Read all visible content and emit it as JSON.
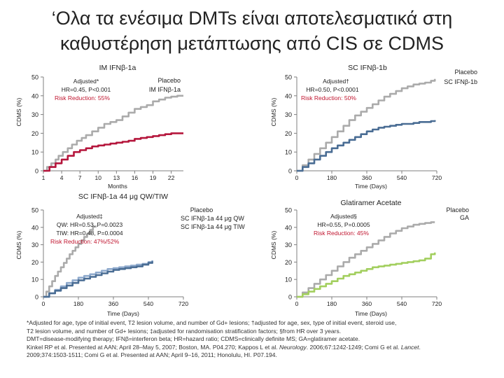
{
  "slide": {
    "title_line1": "‘Ολα τα ενέσιμα DMTs είναι αποτελεσματικά στη",
    "title_line2": "καθυστέρηση μετάπτωσης από CIS σε CDMS"
  },
  "colors": {
    "placebo": "#ababab",
    "im_ifn": "#b5163c",
    "sc_ifn_1b": "#4a6d94",
    "sc_ifn_44": "#8ea9cc",
    "ga": "#a3cf5f",
    "risk_text": "#c0152f",
    "axis": "#7f7f7f"
  },
  "chart_data": [
    {
      "type": "line",
      "title": "IM IFNβ-1a",
      "ylabel": "CDMS (%)",
      "xlabel": "Months",
      "ylim": [
        0,
        50
      ],
      "xlim": [
        1,
        24
      ],
      "x_ticks": [
        "1",
        "4",
        "7",
        "10",
        "13",
        "16",
        "19",
        "22"
      ],
      "y_ticks": [
        "0",
        "10",
        "20",
        "30",
        "40",
        "50"
      ],
      "stats": [
        "Adjusted*",
        "HR=0.45, P<0.001"
      ],
      "risk_reduction": "Risk Reduction: 55%",
      "legend": [
        "Placebo",
        "IM IFNβ-1a"
      ],
      "series": [
        {
          "name": "Placebo",
          "color": "#ababab",
          "x": [
            1,
            1.6,
            2.3,
            3,
            3.5,
            4.2,
            5,
            5.7,
            6.5,
            7.3,
            8,
            9,
            10,
            11,
            12,
            13,
            14,
            15,
            16,
            17,
            18,
            19,
            20,
            21,
            22,
            23,
            24
          ],
          "y": [
            0,
            2,
            4,
            6,
            8,
            10,
            12,
            14,
            16,
            17.5,
            19,
            21,
            23,
            25,
            26,
            27,
            29,
            31,
            33,
            34,
            35,
            37,
            38,
            39,
            39.5,
            40,
            40
          ]
        },
        {
          "name": "IM IFNβ-1a",
          "color": "#b5163c",
          "x": [
            1,
            2,
            3,
            4,
            5,
            6,
            7,
            8,
            9,
            10,
            11,
            12,
            13,
            14,
            15,
            16,
            17,
            18,
            19,
            20,
            21,
            22,
            23,
            24
          ],
          "y": [
            0,
            2,
            4,
            6,
            8,
            10,
            11,
            12,
            13,
            13.5,
            14,
            14.5,
            15,
            15.5,
            16,
            17,
            17.5,
            18,
            18.5,
            19,
            19.5,
            20,
            20,
            20
          ]
        }
      ]
    },
    {
      "type": "line",
      "title": "SC IFNβ-1b",
      "ylabel": "CDMS (%)",
      "xlabel": "Time (Days)",
      "ylim": [
        0,
        50
      ],
      "xlim": [
        0,
        720
      ],
      "x_ticks": [
        "0",
        "180",
        "360",
        "540",
        "720"
      ],
      "y_ticks": [
        "0",
        "10",
        "20",
        "30",
        "40",
        "50"
      ],
      "stats": [
        "Adjusted†",
        "HR=0.50, P<0.0001"
      ],
      "risk_reduction": "Risk Reduction: 50%",
      "legend": [
        "Placebo",
        "SC IFNβ-1b"
      ],
      "series": [
        {
          "name": "Placebo",
          "color": "#ababab",
          "x": [
            0,
            30,
            60,
            90,
            120,
            150,
            180,
            210,
            240,
            270,
            300,
            330,
            360,
            390,
            420,
            450,
            480,
            510,
            540,
            570,
            600,
            630,
            660,
            690,
            710
          ],
          "y": [
            0,
            3,
            6,
            9,
            12,
            15,
            18,
            21,
            24,
            27,
            29.5,
            31.5,
            33.5,
            35.5,
            37.5,
            39.5,
            41,
            42.5,
            44,
            45,
            46,
            46.5,
            47,
            48,
            49
          ]
        },
        {
          "name": "SC IFNβ-1b",
          "color": "#4a6d94",
          "x": [
            0,
            30,
            60,
            90,
            120,
            150,
            180,
            210,
            240,
            270,
            300,
            330,
            360,
            390,
            420,
            450,
            480,
            510,
            540,
            570,
            600,
            630,
            660,
            690,
            710
          ],
          "y": [
            0,
            2,
            4,
            6,
            8,
            10,
            12,
            13.5,
            15,
            16.5,
            18,
            19.5,
            21,
            22,
            23,
            23.5,
            24,
            24.5,
            25,
            25,
            25.5,
            26,
            26,
            26.5,
            27
          ]
        }
      ]
    },
    {
      "type": "line",
      "title": "SC IFNβ-1a 44 μg QW/TIW",
      "ylabel": "CDMS (%)",
      "xlabel": "Time (Days)",
      "ylim": [
        0,
        50
      ],
      "xlim": [
        0,
        720
      ],
      "x_ticks": [
        "0",
        "180",
        "360",
        "540",
        "720"
      ],
      "y_ticks": [
        "0",
        "10",
        "20",
        "30",
        "40",
        "50"
      ],
      "stats": [
        "Adjusted‡",
        "QW: HR=0.53, P=0.0023",
        "TIW: HR=0.48, P=0.0004"
      ],
      "risk_reduction": "Risk Reduction: 47%/52%",
      "legend": [
        "Placebo",
        "SC IFNβ-1a 44 μg QW",
        "SC IFNβ-1a 44 μg TIW"
      ],
      "series": [
        {
          "name": "Placebo",
          "color": "#ababab",
          "x": [
            0,
            15,
            30,
            45,
            60,
            75,
            90,
            105,
            120,
            135,
            150,
            165,
            180,
            195,
            210,
            225,
            240,
            255,
            270
          ],
          "y": [
            0,
            3,
            6,
            9,
            12,
            14.5,
            17,
            19.5,
            22,
            24.5,
            26.5,
            28.5,
            30.5,
            32.5,
            34.5,
            36.5,
            38.5,
            40.5,
            41
          ]
        },
        {
          "name": "SC IFNβ-1a 44 μg QW",
          "color": "#8ea9cc",
          "x": [
            0,
            30,
            60,
            90,
            120,
            150,
            180,
            210,
            240,
            270,
            300,
            330,
            360,
            390,
            420,
            450,
            480,
            510,
            540,
            560
          ],
          "y": [
            0,
            2,
            4,
            6,
            8,
            9.5,
            11,
            12,
            13,
            14,
            15,
            16,
            16.5,
            17,
            17.5,
            18,
            18.5,
            19,
            20,
            21
          ]
        },
        {
          "name": "SC IFNβ-1a 44 μg TIW",
          "color": "#4a6d94",
          "x": [
            0,
            30,
            60,
            90,
            120,
            150,
            180,
            210,
            240,
            270,
            300,
            330,
            360,
            390,
            420,
            450,
            480,
            510,
            540,
            560
          ],
          "y": [
            0,
            2,
            3.5,
            5,
            6.5,
            8,
            9.5,
            10.5,
            11.5,
            12.5,
            13.5,
            14.5,
            15.5,
            16,
            16.5,
            17,
            17.5,
            18.5,
            19.5,
            20.5
          ]
        }
      ]
    },
    {
      "type": "line",
      "title": "Glatiramer Acetate",
      "ylabel": "CDMS (%)",
      "xlabel": "Time (Days)",
      "ylim": [
        0,
        50
      ],
      "xlim": [
        0,
        720
      ],
      "x_ticks": [
        "0",
        "180",
        "360",
        "540",
        "720"
      ],
      "y_ticks": [
        "0",
        "10",
        "20",
        "30",
        "40",
        "50"
      ],
      "stats": [
        "Adjusted§",
        "HR=0.55, P=0.0005"
      ],
      "risk_reduction": "Risk Reduction: 45%",
      "legend": [
        "Placebo",
        "GA"
      ],
      "series": [
        {
          "name": "Placebo",
          "color": "#ababab",
          "x": [
            0,
            30,
            60,
            90,
            120,
            150,
            180,
            210,
            240,
            270,
            300,
            330,
            360,
            390,
            420,
            450,
            480,
            510,
            540,
            570,
            600,
            630,
            660,
            690,
            710
          ],
          "y": [
            0,
            2.5,
            5,
            7.5,
            10,
            12.5,
            15,
            17.5,
            20,
            22.5,
            24.5,
            26.5,
            28.5,
            30.5,
            32.5,
            34.5,
            36.5,
            38,
            39.5,
            40.5,
            41.5,
            42,
            42.5,
            43,
            43
          ]
        },
        {
          "name": "GA",
          "color": "#a3cf5f",
          "x": [
            0,
            30,
            60,
            90,
            120,
            150,
            180,
            210,
            240,
            270,
            300,
            330,
            360,
            390,
            420,
            450,
            480,
            510,
            540,
            570,
            600,
            630,
            660,
            690,
            710
          ],
          "y": [
            0,
            1.5,
            3,
            4.5,
            6,
            7.5,
            9,
            10.5,
            12,
            13,
            14,
            15,
            16,
            17,
            17.5,
            18,
            18.5,
            19,
            19.5,
            20,
            20.5,
            21,
            22,
            24.5,
            25.5
          ]
        }
      ]
    }
  ],
  "footnotes": {
    "line1": "*Adjusted for age, type of initial event, T2 lesion volume, and number of Gd+ lesions; †adjusted for age, sex, type of initial event, steroid use,",
    "line2": "T2 lesion volume, and number of Gd+ lesions; ‡adjusted for randomisation stratification factors; §from HR over 3 years.",
    "line3": "DMT=disease-modifying therapy; IFNβ=interferon beta; HR=hazard ratio; CDMS=clinically definite MS; GA=glatiramer acetate.",
    "line4_pre": "Kinkel RP et al. Presented at AAN; April 28–May 5, 2007; Boston, MA. P04.270; Kappos L et al. ",
    "line4_journal1": "Neurology",
    "line4_mid": ". 2006;67:1242-1249; Comi G et al. ",
    "line4_journal2": "Lancet",
    "line4_end": ".",
    "line5": "2009;374:1503-1511; Comi G et al. Presented at AAN; April 9–16, 2011; Honolulu, HI. P07.194."
  }
}
